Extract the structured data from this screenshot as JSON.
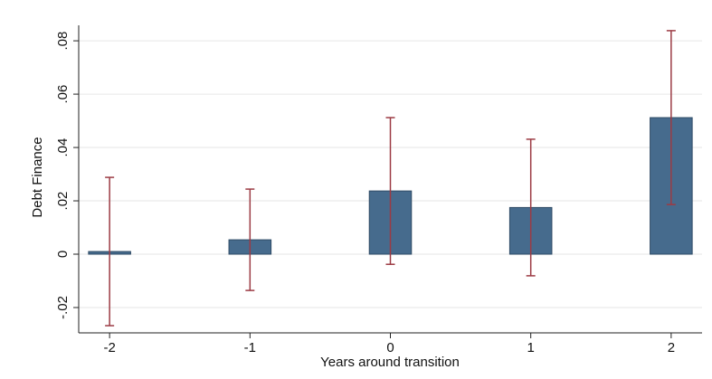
{
  "chart_data": {
    "type": "bar",
    "x_label": "Years around transition",
    "y_label": "Debt Finance",
    "x": [
      -2,
      -1,
      0,
      1,
      2
    ],
    "values": [
      0.001,
      0.0054,
      0.0237,
      0.0175,
      0.0512
    ],
    "errors": [
      0.0278,
      0.019,
      0.0275,
      0.0256,
      0.0326
    ],
    "color": "#466b8d",
    "error_color": "#9c3b44",
    "xlim": [
      -2.22,
      2.22
    ],
    "xticks": [
      -2,
      -1,
      0,
      1,
      2
    ],
    "ylim": [
      -0.0295,
      0.0858
    ],
    "yticks": [
      {
        "value": -0.02,
        "label": "-.02"
      },
      0,
      {
        "value": 0.02,
        "label": ".02"
      },
      {
        "value": 0.04,
        "label": ".04"
      },
      {
        "value": 0.06,
        "label": ".06"
      },
      {
        "value": 0.08,
        "label": ".08"
      }
    ],
    "grid": true
  }
}
